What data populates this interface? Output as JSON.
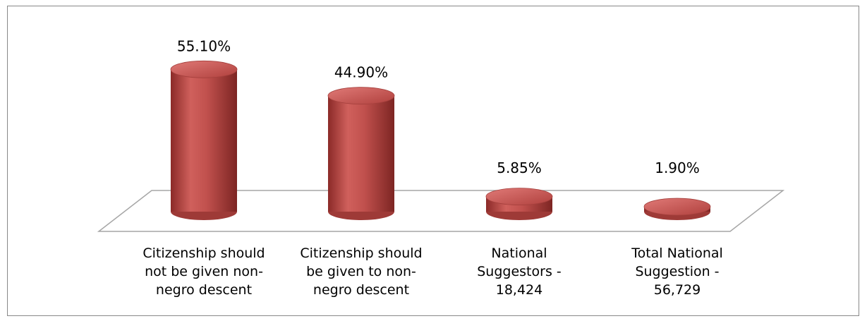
{
  "chart_data": {
    "type": "bar",
    "title": "",
    "categories": [
      "Citizenship should not be given non-negro descent",
      "Citizenship should be given to non-negro descent",
      "National Suggestors - 18,424",
      "Total National Suggestion - 56,729"
    ],
    "category_lines": [
      [
        "Citizenship should",
        "not be given non-",
        "negro descent"
      ],
      [
        "Citizenship should",
        "be given to non-",
        "negro descent"
      ],
      [
        "National",
        "Suggestors -",
        "18,424"
      ],
      [
        "Total National",
        "Suggestion -",
        "56,729"
      ]
    ],
    "values": [
      55.1,
      44.9,
      5.85,
      1.9
    ],
    "value_labels": [
      "55.10%",
      "44.90%",
      "5.85%",
      "1.90%"
    ],
    "unit": "%",
    "grid": false,
    "legend": "none",
    "style": "3d-cylinder",
    "colors": {
      "bar": "#c0504d",
      "bar_dark": "#8b2a28",
      "bar_light": "#e07a77",
      "floor_edge": "#a6a6a6",
      "frame": "#888888"
    }
  }
}
